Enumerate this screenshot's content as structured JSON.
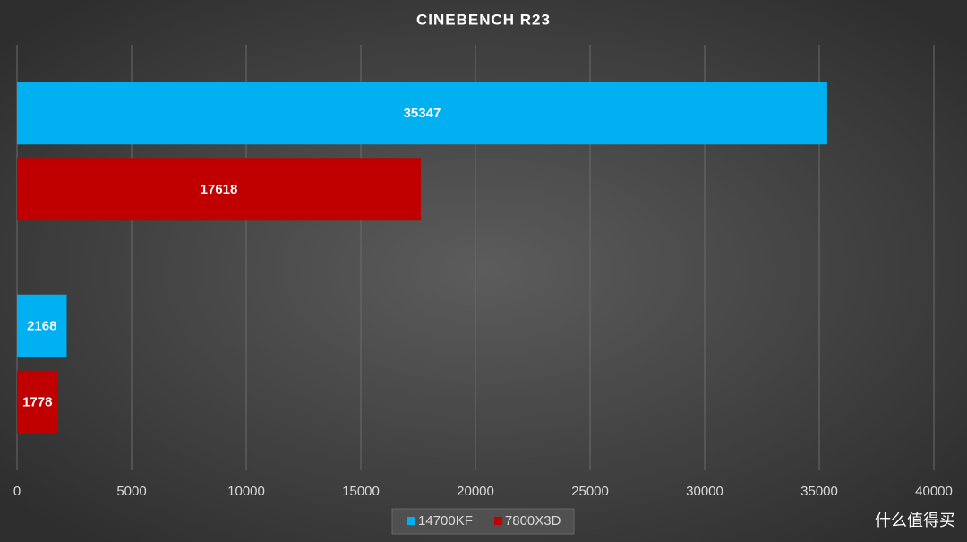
{
  "chart_data": {
    "type": "hbar",
    "title": "CINEBENCH R23",
    "categories": [
      null,
      null
    ],
    "series": [
      {
        "name": "14700KF",
        "color": "#00b0f0",
        "values": [
          35347,
          2168
        ]
      },
      {
        "name": "7800X3D",
        "color": "#c00000",
        "values": [
          17618,
          1778
        ]
      }
    ],
    "xlim": [
      0,
      40000
    ],
    "xticks": [
      0,
      5000,
      10000,
      15000,
      20000,
      25000,
      30000,
      35000,
      40000
    ],
    "grid": true,
    "legend": "bottom"
  },
  "watermark": "什么值得买"
}
